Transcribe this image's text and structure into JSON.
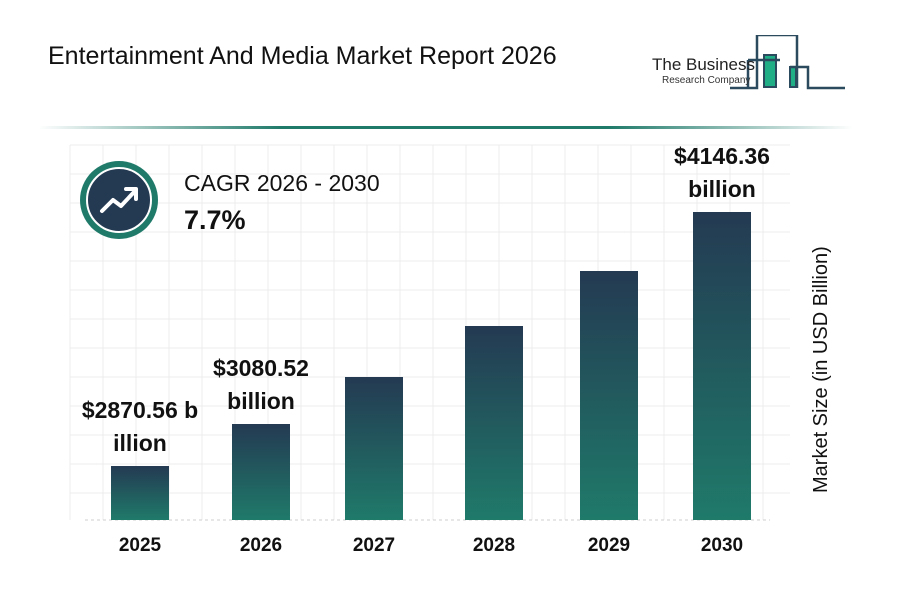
{
  "header": {
    "title": "Entertainment And Media Market Report 2026"
  },
  "logo": {
    "line1": "The Business",
    "line2": "Research Company"
  },
  "cagr": {
    "label": "CAGR 2026 - 2030",
    "value": "7.7%",
    "icon": "trending-up-icon"
  },
  "colors": {
    "bar_top": "#243a52",
    "bar_bottom": "#1f7a6a",
    "accent": "#1f7a6a"
  },
  "chart_data": {
    "type": "bar",
    "title": "Entertainment And Media Market Report 2026",
    "categories": [
      "2025",
      "2026",
      "2027",
      "2028",
      "2029",
      "2030"
    ],
    "values": [
      2870.56,
      3080.52,
      3317.7,
      3573.2,
      3848.3,
      4146.36
    ],
    "data_labels": [
      "$2870.56 billion",
      "$3080.52 billion",
      "",
      "",
      "",
      "$4146.36 billion"
    ],
    "xlabel": "",
    "ylabel": "Market Size (in USD Billion)",
    "ylim": [
      2600,
      4480
    ],
    "grid": true,
    "legend": "none"
  }
}
